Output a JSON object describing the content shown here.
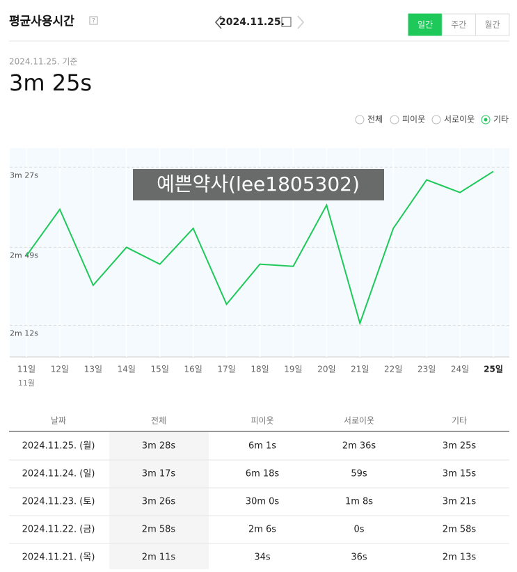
{
  "header": {
    "title": "평균사용시간",
    "help": "?",
    "date": "2024.11.25.",
    "tabs": [
      "일간",
      "주간",
      "월간"
    ],
    "active_tab": 0
  },
  "summary": {
    "basis": "2024.11.25. 기준",
    "value": "3m 25s"
  },
  "chart_data": {
    "type": "line",
    "month_label": "11월",
    "categories": [
      "11일",
      "12일",
      "13일",
      "14일",
      "15일",
      "16일",
      "17일",
      "18일",
      "19일",
      "20일",
      "21일",
      "22일",
      "23일",
      "24일",
      "25일"
    ],
    "other_options": [
      "전체",
      "피이웃",
      "서로이웃"
    ],
    "series": [
      {
        "name": "기타",
        "color": "#1ec95a",
        "values": [
          165,
          187,
          151,
          169,
          161,
          178,
          142,
          161,
          160,
          189,
          133,
          178,
          201,
          195,
          205
        ]
      }
    ],
    "ylim": [
      117,
      216
    ],
    "yticks": [
      {
        "value": 132,
        "label": "2m 12s"
      },
      {
        "value": 169,
        "label": "2m 49s"
      },
      {
        "value": 207,
        "label": "3m 27s"
      }
    ],
    "grid": true,
    "watermark": "예쁜약사(lee1805302)"
  },
  "table": {
    "columns": [
      "날짜",
      "전체",
      "피이웃",
      "서로이웃",
      "기타"
    ],
    "rows": [
      [
        "2024.11.25. (월)",
        "3m 28s",
        "6m 1s",
        "2m 36s",
        "3m 25s"
      ],
      [
        "2024.11.24. (일)",
        "3m 17s",
        "6m 18s",
        "59s",
        "3m 15s"
      ],
      [
        "2024.11.23. (토)",
        "3m 26s",
        "30m 0s",
        "1m 8s",
        "3m 21s"
      ],
      [
        "2024.11.22. (금)",
        "2m 58s",
        "2m 6s",
        "0s",
        "2m 58s"
      ],
      [
        "2024.11.21. (목)",
        "2m 11s",
        "34s",
        "36s",
        "2m 13s"
      ]
    ]
  }
}
